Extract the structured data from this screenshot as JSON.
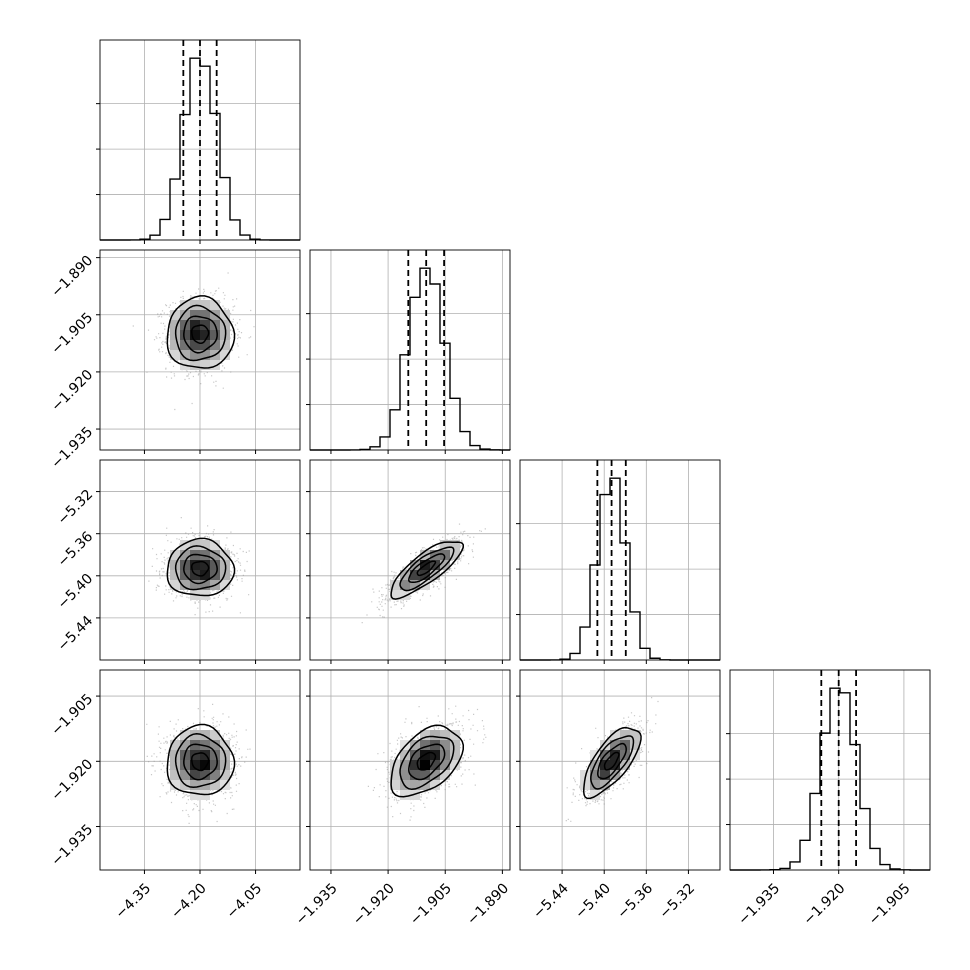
{
  "chart_data": {
    "type": "corner",
    "variables": [
      {
        "name": "",
        "center": -4.2,
        "sigma": 0.045,
        "quantiles": [
          -4.245,
          -4.2,
          -4.155
        ],
        "range": [
          -4.47,
          -3.93
        ],
        "ticks": [
          "−4.35",
          "−4.20",
          "−4.05"
        ],
        "tick_values": [
          -4.35,
          -4.2,
          -4.05
        ]
      },
      {
        "name": "",
        "center": -1.91,
        "sigma": 0.0047,
        "quantiles": [
          -1.9147,
          -1.91,
          -1.9053
        ],
        "range": [
          -1.9405,
          -1.888
        ],
        "ticks": [
          "−1.935",
          "−1.920",
          "−1.905",
          "−1.890"
        ],
        "tick_values": [
          -1.935,
          -1.92,
          -1.905,
          -1.89
        ]
      },
      {
        "name": "",
        "center": -5.393,
        "sigma": 0.0135,
        "quantiles": [
          -5.4065,
          -5.393,
          -5.3795
        ],
        "range": [
          -5.48,
          -5.29
        ],
        "ticks": [
          "−5.44",
          "−5.40",
          "−5.36",
          "−5.32"
        ],
        "tick_values": [
          -5.44,
          -5.4,
          -5.36,
          -5.32
        ]
      },
      {
        "name": "",
        "center": -1.92,
        "sigma": 0.004,
        "quantiles": [
          -1.924,
          -1.92,
          -1.916
        ],
        "range": [
          -1.945,
          -1.899
        ],
        "ticks": [
          "−1.935",
          "−1.920",
          "−1.905"
        ],
        "tick_values": [
          -1.935,
          -1.92,
          -1.905
        ]
      }
    ],
    "correlations": [
      {
        "i": 1,
        "j": 0,
        "rho": 0.0
      },
      {
        "i": 2,
        "j": 0,
        "rho": 0.0
      },
      {
        "i": 2,
        "j": 1,
        "rho": 0.8
      },
      {
        "i": 3,
        "j": 0,
        "rho": 0.0
      },
      {
        "i": 3,
        "j": 1,
        "rho": 0.45
      },
      {
        "i": 3,
        "j": 2,
        "rho": 0.7
      }
    ],
    "left_tick_rows": [
      {
        "row": 1,
        "ticks": [
          "−1.890",
          "−1.905",
          "−1.920",
          "−1.935"
        ],
        "tick_values": [
          -1.89,
          -1.905,
          -1.92,
          -1.935
        ]
      },
      {
        "row": 2,
        "ticks": [
          "−5.32",
          "−5.36",
          "−5.40",
          "−5.44"
        ],
        "tick_values": [
          -5.32,
          -5.36,
          -5.4,
          -5.44
        ]
      },
      {
        "row": 3,
        "ticks": [
          "−1.905",
          "−1.920",
          "−1.935"
        ],
        "tick_values": [
          -1.905,
          -1.92,
          -1.935
        ]
      }
    ],
    "histogram_bins": 20,
    "grid": true,
    "colors": {
      "line": "#000000",
      "grid": "#b0b0b0",
      "points": "#9a9a9a"
    }
  }
}
